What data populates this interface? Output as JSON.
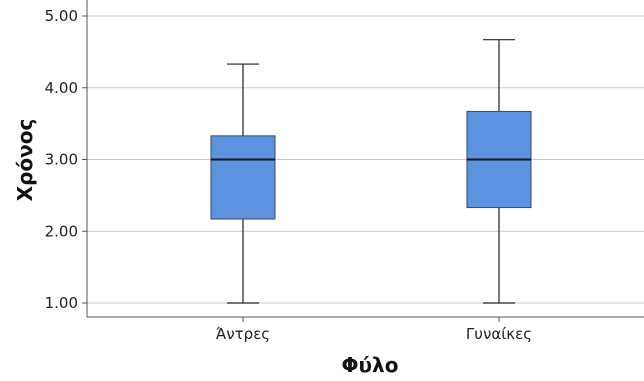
{
  "chart_data": {
    "type": "boxplot",
    "xlabel": "Φύλο",
    "ylabel": "Χρόνος",
    "ylim": [
      0.8,
      5.2
    ],
    "yticks": [
      "1.00",
      "2.00",
      "3.00",
      "4.00",
      "5.00"
    ],
    "ytick_values": [
      1,
      2,
      3,
      4,
      5
    ],
    "grid": true,
    "box_color": "#5B93E0",
    "box_stroke": "#3a4a66",
    "categories": [
      "Άντρες",
      "Γυναίκες"
    ],
    "boxes": [
      {
        "category": "Άντρες",
        "min": 1.0,
        "q1": 2.17,
        "median": 3.0,
        "q3": 3.33,
        "max": 4.33
      },
      {
        "category": "Γυναίκες",
        "min": 1.0,
        "q1": 2.33,
        "median": 3.0,
        "q3": 3.67,
        "max": 4.67
      }
    ]
  }
}
